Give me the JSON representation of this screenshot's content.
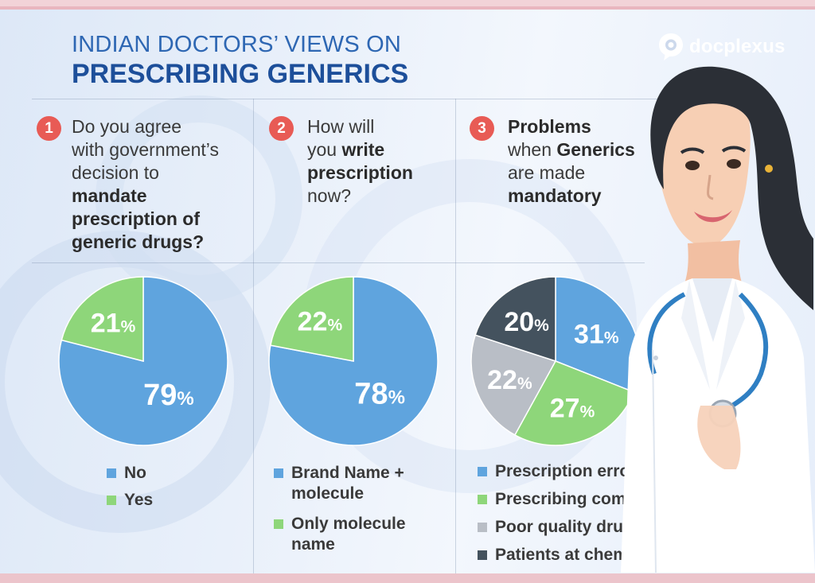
{
  "header": {
    "title_line1": "INDIAN DOCTORS’ VIEWS ON",
    "title_line2": "PRESCRIBING GENERICS"
  },
  "brand": {
    "name": "docplexus"
  },
  "questions": [
    {
      "number": "1",
      "line1": "Do you agree",
      "line2": "with government’s",
      "line3": "decision to",
      "line4": "mandate",
      "line5": "prescription of",
      "line6": "generic drugs?"
    },
    {
      "number": "2",
      "line1": "How will",
      "line2a": "you ",
      "line2b": "write",
      "line3": "prescription",
      "line4": "now?"
    },
    {
      "number": "3",
      "line1": "Problems",
      "line2a": "when ",
      "line2b": "Generics",
      "line3": "are made",
      "line4": "mandatory"
    }
  ],
  "colors": {
    "blue": "#5fa4de",
    "green": "#8ed67a",
    "gray": "#b9bec6",
    "dark": "#44525e",
    "accent": "#e85b55"
  },
  "chart_data": [
    {
      "type": "pie",
      "title": "Do you agree with government’s decision to mandate prescription of generic drugs?",
      "categories": [
        "No",
        "Yes"
      ],
      "values": [
        79,
        21
      ],
      "value_labels": [
        "79",
        "21"
      ],
      "unit": "%",
      "colors": [
        "#5fa4de",
        "#8ed67a"
      ],
      "legend": [
        "No",
        "Yes"
      ]
    },
    {
      "type": "pie",
      "title": "How will you write prescription now?",
      "categories": [
        "Brand Name + molecule",
        "Only molecule name"
      ],
      "values": [
        78,
        22
      ],
      "value_labels": [
        "78",
        "22"
      ],
      "unit": "%",
      "colors": [
        "#5fa4de",
        "#8ed67a"
      ],
      "legend": [
        [
          "Brand Name +",
          "molecule"
        ],
        [
          "Only molecule",
          "name"
        ]
      ]
    },
    {
      "type": "pie",
      "title": "Problems when Generics are made mandatory",
      "categories": [
        "Prescription errors",
        "Prescribing combination drugs",
        "Poor quality drugs",
        "Patients at chemists’ mercy"
      ],
      "values": [
        31,
        27,
        22,
        20
      ],
      "value_labels": [
        "31",
        "27",
        "22",
        "20"
      ],
      "unit": "%",
      "colors": [
        "#5fa4de",
        "#8ed67a",
        "#b9bec6",
        "#44525e"
      ],
      "legend": [
        "Prescription errors",
        "Prescribing combination drugs",
        "Poor quality drugs",
        "Patients at chemists’ mercy"
      ]
    }
  ]
}
